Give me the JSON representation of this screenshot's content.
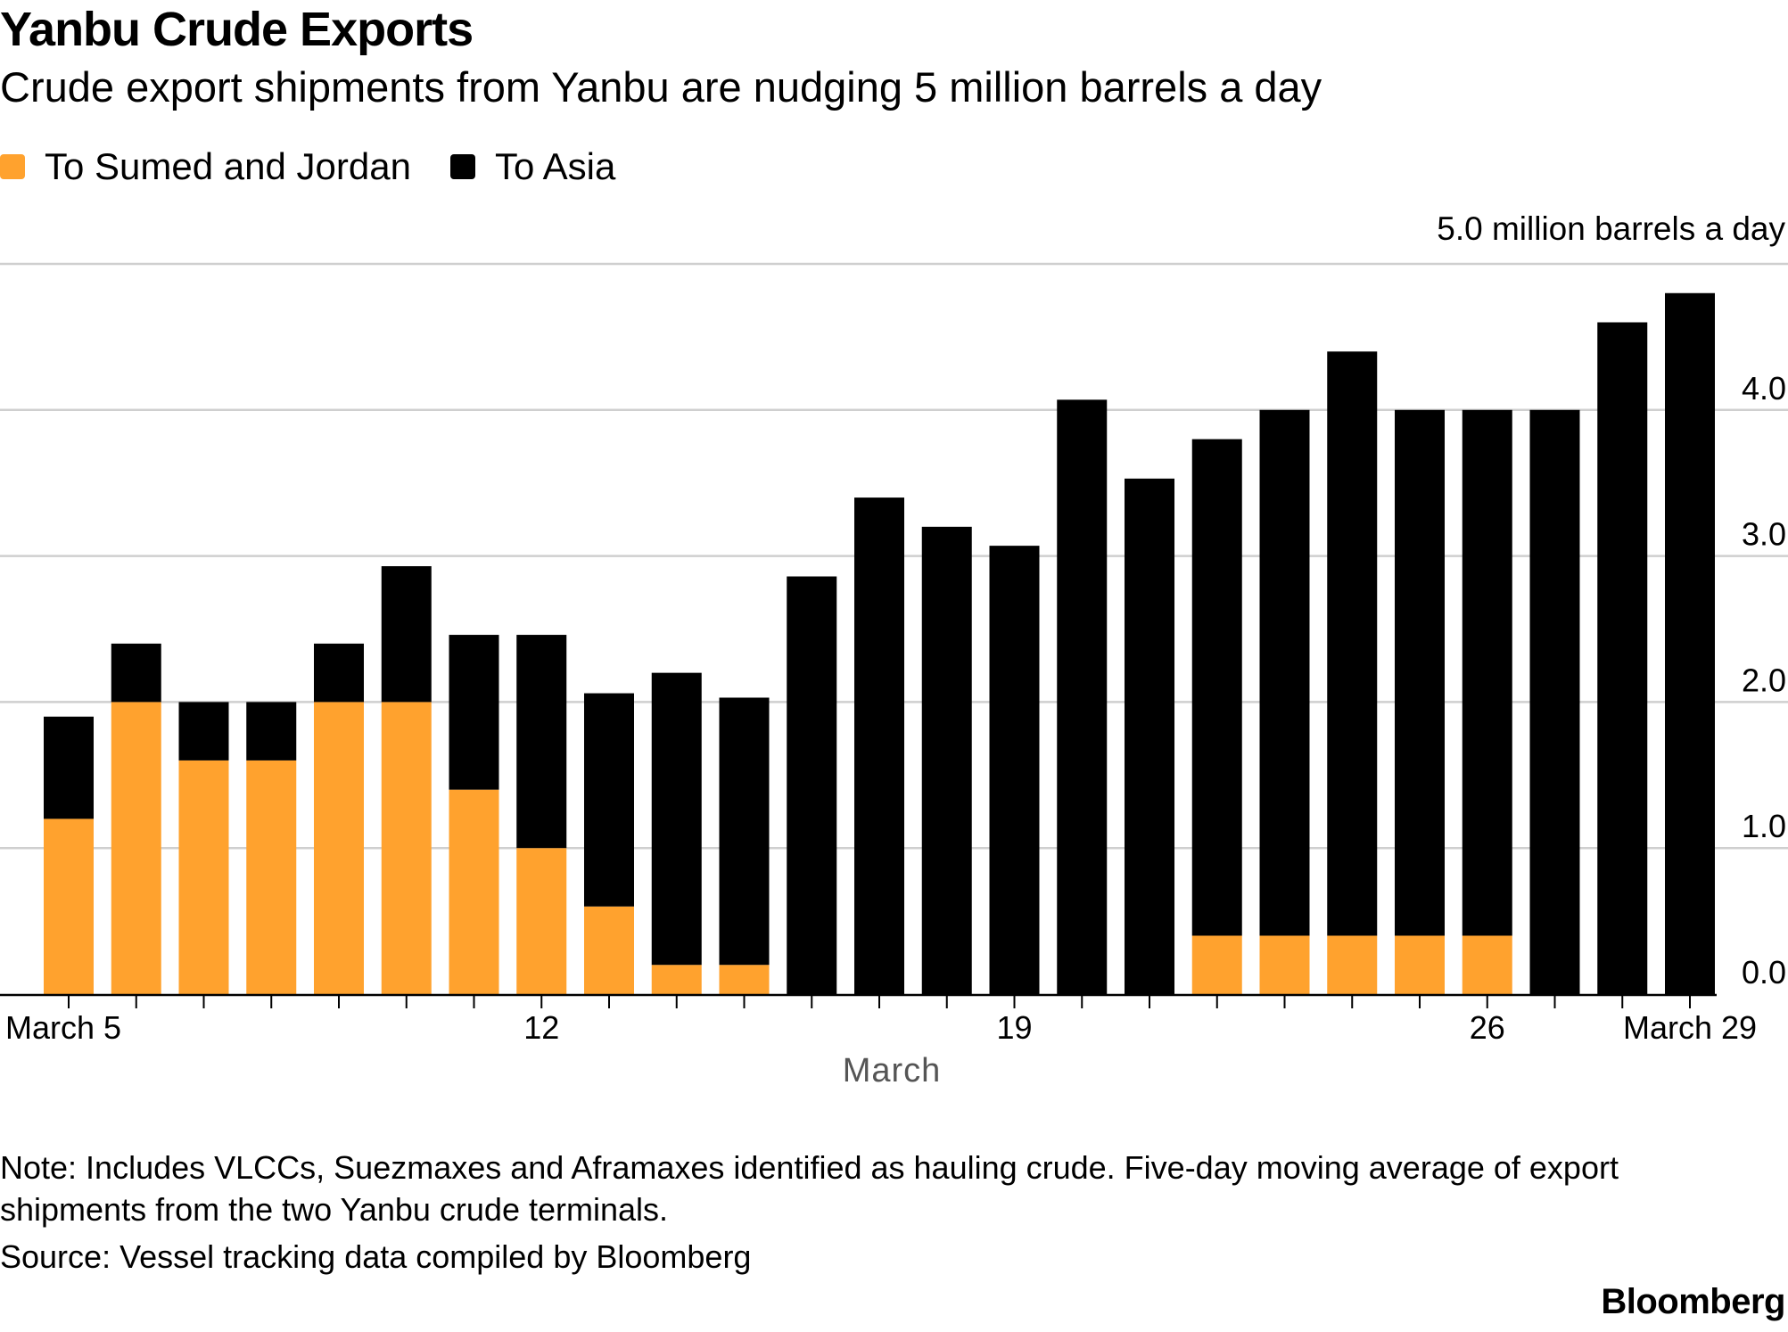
{
  "chart_data": {
    "type": "bar",
    "stacked": true,
    "title": "Yanbu Crude Exports",
    "subtitle": "Crude export shipments from Yanbu are nudging 5 million barrels a day",
    "ylabel": "5.0 million barrels a day",
    "xlabel": "March",
    "ylim": [
      0,
      5
    ],
    "yticks": [
      "0.0",
      "1.0",
      "2.0",
      "3.0",
      "4.0"
    ],
    "gridlines": [
      1,
      2,
      3,
      4,
      5
    ],
    "x_tick_labels": [
      {
        "day": 5,
        "label": "March 5"
      },
      {
        "day": 12,
        "label": "12"
      },
      {
        "day": 19,
        "label": "19"
      },
      {
        "day": 26,
        "label": "26"
      },
      {
        "day": 29,
        "label": "March 29"
      }
    ],
    "categories": [
      5,
      6,
      7,
      8,
      9,
      10,
      11,
      12,
      13,
      14,
      15,
      16,
      17,
      18,
      19,
      20,
      21,
      22,
      23,
      24,
      25,
      26,
      27,
      28,
      29
    ],
    "series": [
      {
        "name": "To Sumed and Jordan",
        "color": "#ffa22e",
        "values": [
          1.2,
          2.0,
          1.6,
          1.6,
          2.0,
          2.0,
          1.4,
          1.0,
          0.6,
          0.2,
          0.2,
          0,
          0,
          0,
          0,
          0,
          0,
          0.4,
          0.4,
          0.4,
          0.4,
          0.4,
          0,
          0,
          0
        ]
      },
      {
        "name": "To Asia",
        "color": "#000000",
        "values": [
          0.7,
          0.4,
          0.4,
          0.4,
          0.4,
          0.93,
          1.06,
          1.46,
          1.46,
          2.0,
          1.83,
          2.86,
          3.4,
          3.2,
          3.07,
          4.07,
          3.53,
          3.4,
          3.6,
          4.0,
          3.6,
          3.6,
          4.0,
          4.6,
          4.8
        ]
      }
    ]
  },
  "legend": [
    {
      "label": "To Sumed and Jordan",
      "color": "#ffa22e"
    },
    {
      "label": "To Asia",
      "color": "#000000"
    }
  ],
  "note": "Note: Includes VLCCs, Suezmaxes and Aframaxes identified as hauling crude. Five-day moving average of export shipments from the two Yanbu crude terminals.",
  "source": "Source: Vessel tracking data compiled by Bloomberg",
  "brand": "Bloomberg"
}
